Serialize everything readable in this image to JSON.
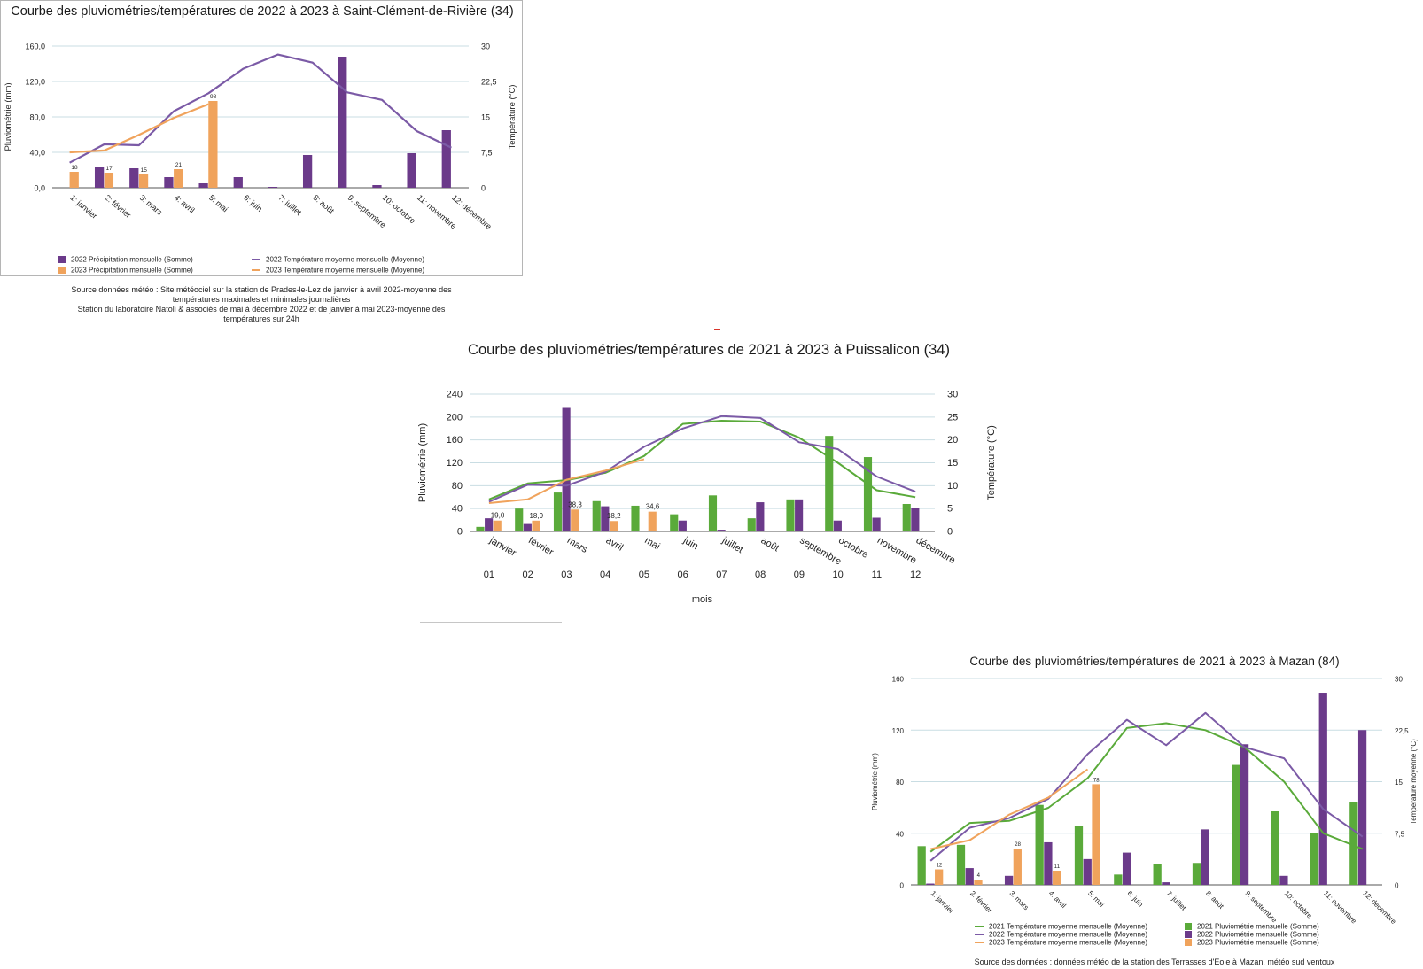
{
  "colors": {
    "purple": "#6b3a8a",
    "orange": "#f0a35c",
    "green": "#5aaa3a",
    "purple_line": "#7b5aa6",
    "grid": "#c9dde3"
  },
  "chart_data": [
    {
      "id": "saint-clement",
      "type": "bar",
      "title": "Courbe des pluviométries/températures de 2022 à 2023 à Saint-Clément-de-Rivière (34)",
      "ylabel": "Pluviométrie (mm)",
      "y2label": "Température (°C)",
      "ylim": [
        0,
        160
      ],
      "y2lim": [
        0,
        30
      ],
      "yticks": [
        "0,0",
        "40,0",
        "80,0",
        "120,0",
        "160,0"
      ],
      "y2ticks": [
        "0",
        "7,5",
        "15",
        "22,5",
        "30"
      ],
      "categories": [
        "1: janvier",
        "2: février",
        "3: mars",
        "4: avril",
        "5: mai",
        "6: juin",
        "7: juillet",
        "8: août",
        "9: septembre",
        "10: octobre",
        "11: novembre",
        "12: décembre"
      ],
      "bar_series": [
        {
          "name": "2022 Précipitation mensuelle (Somme)",
          "color": "#6b3a8a",
          "values": [
            0,
            24,
            22,
            12,
            5,
            12,
            1,
            37,
            148,
            3,
            39,
            65
          ],
          "labels": []
        },
        {
          "name": "2023 Précipitation mensuelle (Somme)",
          "color": "#f0a35c",
          "values": [
            18,
            17,
            15,
            21,
            98,
            null,
            null,
            null,
            null,
            null,
            null,
            null
          ],
          "labels": [
            "18",
            "17",
            "15",
            "21",
            "98"
          ]
        }
      ],
      "line_series": [
        {
          "name": "2022 Température moyenne mensuelle (Moyenne)",
          "color": "#7b5aa6",
          "values": [
            5.3,
            9.2,
            9,
            16.2,
            20,
            25.2,
            28.2,
            26.5,
            20.2,
            18.6,
            12,
            8.5
          ]
        },
        {
          "name": "2023 Température moyenne mensuelle (Moyenne)",
          "color": "#f0a35c",
          "values": [
            7.5,
            7.9,
            11.2,
            14.8,
            17.7,
            null,
            null,
            null,
            null,
            null,
            null,
            null
          ]
        }
      ],
      "legend": [
        {
          "label": "2022 Précipitation mensuelle (Somme)",
          "color": "#6b3a8a",
          "kind": "swatch"
        },
        {
          "label": "2022 Température moyenne mensuelle (Moyenne)",
          "color": "#7b5aa6",
          "kind": "line"
        },
        {
          "label": "2023 Précipitation mensuelle (Somme)",
          "color": "#f0a35c",
          "kind": "swatch"
        },
        {
          "label": "2023 Température moyenne mensuelle (Moyenne)",
          "color": "#f0a35c",
          "kind": "line"
        }
      ],
      "caption": [
        "Source données météo : Site météociel sur la station de Prades-le-Lez de janvier à avril 2022-moyenne des",
        "températures maximales et minimales journalières",
        "Station du laboratoire Natoli & associés  de mai à décembre 2022 et de janvier à mai 2023-moyenne des",
        "températures sur 24h"
      ]
    },
    {
      "id": "puissalicon",
      "type": "bar",
      "title": "Courbe des pluviométries/températures de 2021 à 2023 à Puissalicon (34)",
      "ylabel": "Pluviométrie (mm)",
      "y2label": "Température (°C)",
      "xlabel": "mois",
      "ylim": [
        0,
        240
      ],
      "y2lim": [
        0,
        30
      ],
      "yticks": [
        "0",
        "40",
        "80",
        "120",
        "160",
        "200",
        "240"
      ],
      "y2ticks": [
        "0",
        "5",
        "10",
        "15",
        "20",
        "25",
        "30"
      ],
      "categories": [
        "janvier",
        "février",
        "mars",
        "avril",
        "mai",
        "juin",
        "juillet",
        "août",
        "septembre",
        "octobre",
        "novembre",
        "décembre"
      ],
      "categories2": [
        "01",
        "02",
        "03",
        "04",
        "05",
        "06",
        "07",
        "08",
        "09",
        "10",
        "11",
        "12"
      ],
      "bar_series": [
        {
          "color": "#5aaa3a",
          "values": [
            8,
            40,
            68,
            53,
            45,
            30,
            63,
            23,
            56,
            167,
            130,
            48
          ],
          "labels": []
        },
        {
          "color": "#6b3a8a",
          "values": [
            23,
            13,
            216,
            44,
            1,
            19,
            3,
            51,
            56,
            19,
            24,
            41
          ],
          "labels": []
        },
        {
          "color": "#f0a35c",
          "values": [
            19,
            18.9,
            38.3,
            18.2,
            34.6,
            null,
            null,
            null,
            null,
            null,
            null,
            null
          ],
          "labels": [
            "19,0",
            "18,9",
            "38,3",
            "18,2",
            "34,6"
          ]
        }
      ],
      "line_series": [
        {
          "color": "#5aaa3a",
          "values": [
            7,
            10.5,
            11.2,
            12.8,
            16.5,
            23.5,
            24.2,
            24.0,
            20.5,
            15,
            9,
            7.5
          ]
        },
        {
          "color": "#7b5aa6",
          "values": [
            6.5,
            10.2,
            10,
            13,
            18.5,
            22.5,
            25.2,
            24.8,
            19.5,
            18,
            12,
            8.7
          ]
        },
        {
          "color": "#f0a35c",
          "values": [
            6.2,
            7.0,
            11.3,
            13.3,
            15.8,
            null,
            null,
            null,
            null,
            null,
            null,
            null
          ]
        }
      ]
    },
    {
      "id": "mazan",
      "type": "bar",
      "title": "Courbe des pluviométries/températures de 2021 à 2023 à Mazan (84)",
      "ylabel": "Pluviométrie (mm)",
      "y2label": "Température moyenne (°C)",
      "ylim": [
        0,
        160
      ],
      "y2lim": [
        0,
        30
      ],
      "yticks": [
        "0",
        "40",
        "80",
        "120",
        "160"
      ],
      "y2ticks": [
        "0",
        "7,5",
        "15",
        "22,5",
        "30"
      ],
      "categories": [
        "1: janvier",
        "2: février",
        "3: mars",
        "4: avril",
        "5: mai",
        "6: juin",
        "7: juillet",
        "8: août",
        "9: septembre",
        "10: octobre",
        "11: novembre",
        "12: décembre"
      ],
      "bar_series": [
        {
          "name": "2021 Pluviométrie mensuelle (Somme)",
          "color": "#5aaa3a",
          "values": [
            30,
            31,
            0,
            62,
            46,
            8,
            16,
            17,
            93,
            57,
            40,
            64
          ],
          "labels": []
        },
        {
          "name": "2022 Pluviométrie mensuelle (Somme)",
          "color": "#6b3a8a",
          "values": [
            1,
            13,
            7,
            33,
            20,
            25,
            2,
            43,
            109,
            7,
            149,
            120
          ],
          "labels": []
        },
        {
          "name": "2023 Pluviométrie mensuelle (Somme)",
          "color": "#f0a35c",
          "values": [
            12,
            4,
            28,
            11,
            78,
            null,
            null,
            null,
            null,
            null,
            null,
            null
          ],
          "labels": [
            "12",
            "4",
            "28",
            "11",
            "78"
          ]
        }
      ],
      "line_series": [
        {
          "name": "2021 Température moyenne mensuelle (Moyenne)",
          "color": "#5aaa3a",
          "values": [
            4.8,
            9,
            9.3,
            11.2,
            15.5,
            22.8,
            23.5,
            22.5,
            20,
            15,
            7.5,
            5.2
          ]
        },
        {
          "name": "2022 Température moyenne mensuelle (Moyenne)",
          "color": "#7b5aa6",
          "values": [
            3.5,
            8.3,
            9.7,
            12.5,
            19,
            24,
            20.3,
            25,
            20,
            18.4,
            11,
            7
          ]
        },
        {
          "name": "2023 Température moyenne mensuelle (Moyenne)",
          "color": "#f0a35c",
          "values": [
            5.2,
            6.5,
            10.2,
            12.7,
            16.8,
            null,
            null,
            null,
            null,
            null,
            null,
            null
          ]
        }
      ],
      "legend": [
        {
          "label": "2021 Température moyenne mensuelle (Moyenne)",
          "color": "#5aaa3a",
          "kind": "line"
        },
        {
          "label": "2021 Pluviométrie mensuelle (Somme)",
          "color": "#5aaa3a",
          "kind": "swatch"
        },
        {
          "label": "2022 Température moyenne mensuelle (Moyenne)",
          "color": "#7b5aa6",
          "kind": "line"
        },
        {
          "label": "2022 Pluviométrie mensuelle (Somme)",
          "color": "#6b3a8a",
          "kind": "swatch"
        },
        {
          "label": "2023 Température moyenne mensuelle (Moyenne)",
          "color": "#f0a35c",
          "kind": "line"
        },
        {
          "label": "2023 Pluviométrie mensuelle (Somme)",
          "color": "#f0a35c",
          "kind": "swatch"
        }
      ],
      "caption": "Source des données : données météo de la station des Terrasses d'Eole à Mazan, météo sud ventoux"
    }
  ]
}
